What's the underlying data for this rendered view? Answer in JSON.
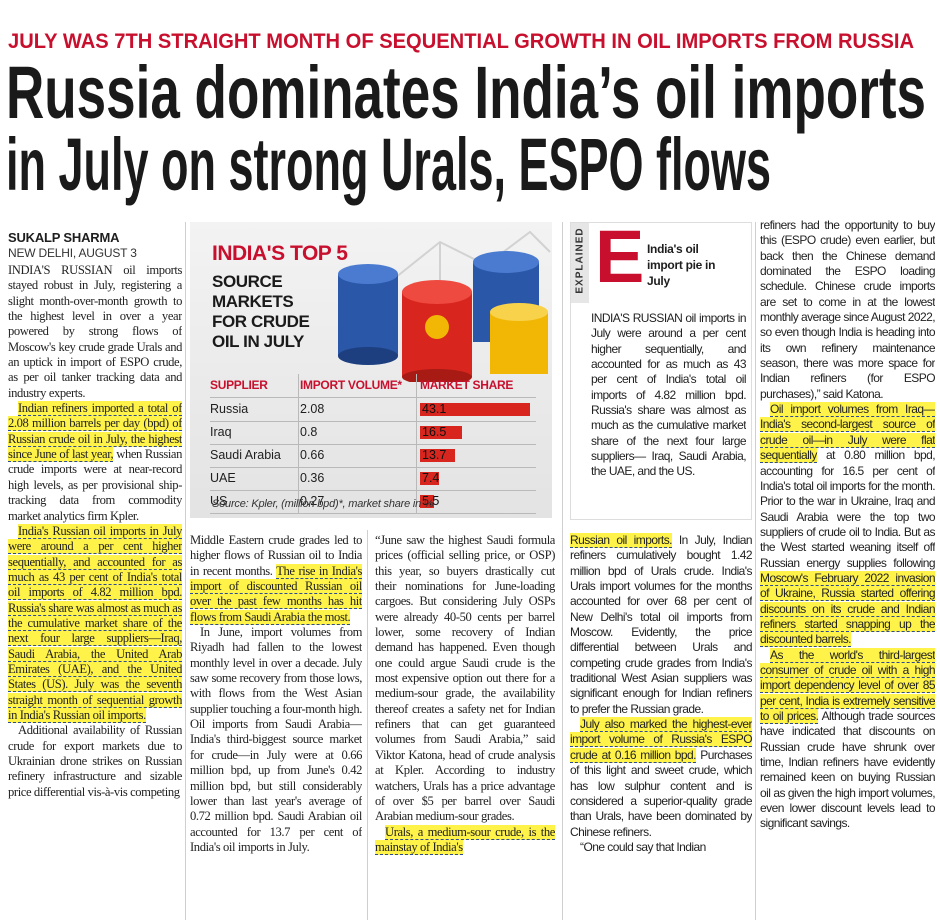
{
  "kicker": "JULY WAS 7TH STRAIGHT MONTH OF SEQUENTIAL GROWTH IN OIL IMPORTS FROM RUSSIA",
  "headline": [
    "Russia dominates India’s oil imports",
    "in July on strong Urals, ESPO flows"
  ],
  "byline": "SUKALP SHARMA",
  "dateline": "NEW DELHI, AUGUST 3",
  "infographic": {
    "title_highlight": "INDIA'S TOP 5",
    "title": "SOURCE MARKETS FOR CRUDE OIL IN JULY",
    "headers": [
      "SUPPLIER",
      "IMPORT VOLUME*",
      "MARKET SHARE"
    ],
    "rows": [
      [
        "Russia",
        2.08,
        43.1
      ],
      [
        "Iraq",
        0.8,
        16.5
      ],
      [
        "Saudi Arabia",
        0.66,
        13.7
      ],
      [
        "UAE",
        0.36,
        7.4
      ],
      [
        "US",
        0.27,
        5.5
      ]
    ],
    "bar_color": "#d8261f",
    "source": "Source: Kpler, (million bpd)*, market share in %"
  },
  "explained": {
    "label": "EXPLAINED",
    "letter": "E",
    "heading": "India's oil import pie in July",
    "paragraphs": [
      [
        {
          "text": "INDIA'S RUSSIAN oil imports in July were around a per cent higher sequentially, and accounted for as much as 43 per cent of India's total oil imports of 4.82 million bpd. Russia's share was almost as much as the cumulative market share of the next four large suppliers— Iraq, Saudi Arabia, the UAE, and the US."
        }
      ]
    ]
  },
  "columns": [
    {
      "paragraphs": [
        [
          {
            "text": "INDIA'S RUSSIAN oil imports stayed robust in July, registering a slight month-over-month growth to the highest level in over a year powered by strong flows of Moscow's key crude grade Urals and an uptick in import of ESPO crude, as per oil tanker tracking data and industry experts."
          }
        ],
        [
          {
            "text": "Indian refiners imported a total of 2.08 million barrels per day (bpd) of Russian crude oil in July, the highest since June of last year,",
            "highlight": true
          },
          {
            "text": " when Russian crude imports were at near-record high levels, as per provisional ship-tracking data from commodity market analytics firm Kpler."
          }
        ],
        [
          {
            "text": "India's Russian oil imports in July were around a per cent higher sequentially, and accounted for as much as 43 per cent of India's total oil imports of 4.82 million bpd. Russia's share was almost as much as the cumulative market share of the next four large suppliers—Iraq, Saudi Arabia, the United Arab Emirates (UAE), and the United States (US). July was the seventh straight month of sequential growth in India's Russian oil imports.",
            "highlight": true
          }
        ],
        [
          {
            "text": "Additional availability of Russian crude for export markets due to Ukrainian drone strikes on Russian refinery infrastructure and sizable price differential vis-à-vis competing"
          }
        ]
      ]
    },
    {
      "paragraphs": [
        [
          {
            "text": "Middle Eastern crude grades led to higher flows of Russian oil to India in recent months. "
          },
          {
            "text": "The rise in India's import of discounted Russian oil over the past few months has hit flows from Saudi Arabia the most.",
            "highlight": true
          }
        ],
        [
          {
            "text": "In June, import volumes from Riyadh had fallen to the lowest monthly level in over a decade. July saw some recovery from those lows, with flows from the West Asian supplier touching a four-month high. Oil imports from Saudi Arabia—India's third-biggest source market for crude—in July were at 0.66 million bpd, up from June's 0.42 million bpd, but still considerably lower than last year's average of 0.72 million bpd. Saudi Arabian oil accounted for 13.7 per cent of India's oil imports in July."
          }
        ]
      ]
    },
    {
      "paragraphs": [
        [
          {
            "text": "“June saw the highest Saudi formula prices (official selling price, or OSP) this year, so buyers drastically cut their nominations for June-loading cargoes. But considering July OSPs were already 40-50 cents per barrel lower, some recovery of Indian demand has happened. Even though one could argue Saudi crude is the most expensive option out there for a medium-sour grade, the availability thereof creates a safety net for Indian refiners that can get guaranteed volumes from Saudi Arabia,” said Viktor Katona, head of crude analysis at Kpler. According to industry watchers, Urals has a price advantage of over $5 per barrel over Saudi Arabian medium-sour grades."
          }
        ],
        [
          {
            "text": "Urals, a medium-sour crude, is the mainstay of India's",
            "highlight": true
          }
        ]
      ]
    },
    {
      "paragraphs": [
        [
          {
            "text": "Russian oil imports.",
            "highlight": true
          },
          {
            "text": " In July, Indian refiners cumulatively bought 1.42 million bpd of Urals crude. India's Urals import volumes for the months accounted for over 68 per cent of New Delhi's total oil imports from Moscow. Evidently, the price differential between Urals and competing crude grades from India's traditional West Asian suppliers was significant enough for Indian refiners to prefer the Russian grade."
          }
        ],
        [
          {
            "text": "July also marked the highest-ever import volume of Russia's ESPO crude at 0.16 million bpd.",
            "highlight": true
          },
          {
            "text": " Purchases of this light and sweet crude, which has low sulphur content and is considered a superior-quality grade than Urals, have been dominated by Chinese refiners."
          }
        ],
        [
          {
            "text": "“One could say that Indian"
          }
        ]
      ]
    },
    {
      "paragraphs": [
        [
          {
            "text": "refiners had the opportunity to buy this (ESPO crude) even earlier, but back then the Chinese demand dominated the ESPO loading schedule. Chinese crude imports are set to come in at the lowest monthly average since August 2022, so even though India is heading into its own refinery maintenance season, there was more space for Indian refiners (for ESPO purchases),” said Katona."
          }
        ],
        [
          {
            "text": "Oil import volumes from Iraq—India's second-largest source of crude oil—in July were flat sequentially",
            "highlight": true
          },
          {
            "text": " at 0.80 million bpd, accounting for 16.5 per cent of India's total oil imports for the month. Prior to the war in Ukraine, Iraq and Saudi Arabia were the top two suppliers of crude oil to India. But as the West started weaning itself off Russian energy supplies following "
          },
          {
            "text": "Moscow's February 2022 invasion of Ukraine, Russia started offering discounts on its crude and Indian refiners started snapping up the discounted barrels.",
            "highlight": true
          }
        ],
        [
          {
            "text": "As the world's third-largest consumer of crude oil with a high import dependency level of over 85 per cent, India is extremely sensitive to oil prices.",
            "highlight": true
          },
          {
            "text": " Although trade sources have indicated that discounts on Russian crude have shrunk over time, Indian refiners have evidently remained keen on buying Russian oil as given the high import volumes, even lower discount levels lead to significant savings."
          }
        ]
      ]
    }
  ]
}
